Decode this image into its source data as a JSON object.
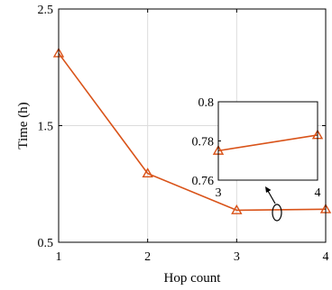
{
  "chart_data": [
    {
      "type": "line",
      "xlabel": "Hop count",
      "ylabel": "Time (h)",
      "xlim": [
        1,
        4
      ],
      "ylim": [
        0.5,
        2.5
      ],
      "xticks": [
        "1",
        "2",
        "3",
        "4"
      ],
      "yticks": [
        "0.5",
        "1.5",
        "2.5"
      ],
      "grid": true,
      "marker": "triangle",
      "series": [
        {
          "x": [
            1,
            2,
            3,
            4
          ],
          "values": [
            2.12,
            1.09,
            0.775,
            0.783
          ]
        }
      ],
      "colors": {
        "line": "#d95319",
        "grid": "#dcdcdc",
        "axis": "#000000"
      }
    },
    {
      "type": "line",
      "role": "inset-zoom",
      "xlim": [
        3,
        4
      ],
      "ylim": [
        0.76,
        0.8
      ],
      "xticks": [
        "3",
        "4"
      ],
      "yticks": [
        "0.76",
        "0.78",
        "0.8"
      ],
      "grid": false,
      "marker": "triangle",
      "series": [
        {
          "x": [
            3,
            4
          ],
          "values": [
            0.775,
            0.783
          ]
        }
      ]
    }
  ]
}
